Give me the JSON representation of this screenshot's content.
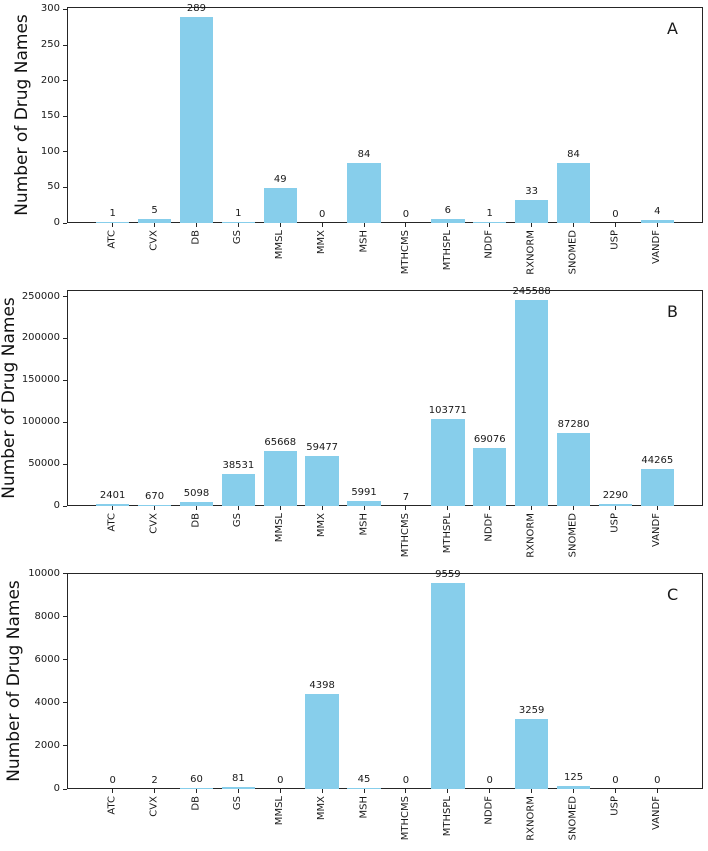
{
  "figure": {
    "bar_color": "#87ceeb",
    "axis_color": "#262626",
    "text_color": "#1a1a1a"
  },
  "chart_data": [
    {
      "type": "bar",
      "panel_label": "A",
      "title": "",
      "xlabel": "",
      "ylabel": "Number of Drug Names",
      "categories": [
        "ATC",
        "CVX",
        "DB",
        "GS",
        "MMSL",
        "MMX",
        "MSH",
        "MTHCMS",
        "MTHSPL",
        "NDDF",
        "RXNORM",
        "SNOMED",
        "USP",
        "VANDF"
      ],
      "values": [
        1,
        5,
        289,
        1,
        49,
        0,
        84,
        0,
        6,
        1,
        33,
        84,
        0,
        4
      ],
      "yticks": [
        0,
        50,
        100,
        150,
        200,
        250,
        300
      ],
      "ylim": [
        0,
        303.45
      ],
      "grid": false,
      "legend": false,
      "value_labels": true,
      "xtick_rotation": 90
    },
    {
      "type": "bar",
      "panel_label": "B",
      "title": "",
      "xlabel": "",
      "ylabel": "Number of Drug Names",
      "categories": [
        "ATC",
        "CVX",
        "DB",
        "GS",
        "MMSL",
        "MMX",
        "MSH",
        "MTHCMS",
        "MTHSPL",
        "NDDF",
        "RXNORM",
        "SNOMED",
        "USP",
        "VANDF"
      ],
      "values": [
        2401,
        670,
        5098,
        38531,
        65668,
        59477,
        5991,
        7,
        103771,
        69076,
        245588,
        87280,
        2290,
        44265
      ],
      "yticks": [
        0,
        50000,
        100000,
        150000,
        200000,
        250000
      ],
      "ylim": [
        0,
        257867
      ],
      "grid": false,
      "legend": false,
      "value_labels": true,
      "xtick_rotation": 90
    },
    {
      "type": "bar",
      "panel_label": "C",
      "title": "",
      "xlabel": "",
      "ylabel": "Number of Drug Names",
      "categories": [
        "ATC",
        "CVX",
        "DB",
        "GS",
        "MMSL",
        "MMX",
        "MSH",
        "MTHCMS",
        "MTHSPL",
        "NDDF",
        "RXNORM",
        "SNOMED",
        "USP",
        "VANDF"
      ],
      "values": [
        0,
        2,
        60,
        81,
        0,
        4398,
        45,
        0,
        9559,
        0,
        3259,
        125,
        0,
        0
      ],
      "yticks": [
        0,
        2000,
        4000,
        6000,
        8000,
        10000
      ],
      "ylim": [
        0,
        10037
      ],
      "grid": false,
      "legend": false,
      "value_labels": true,
      "xtick_rotation": 90
    }
  ]
}
